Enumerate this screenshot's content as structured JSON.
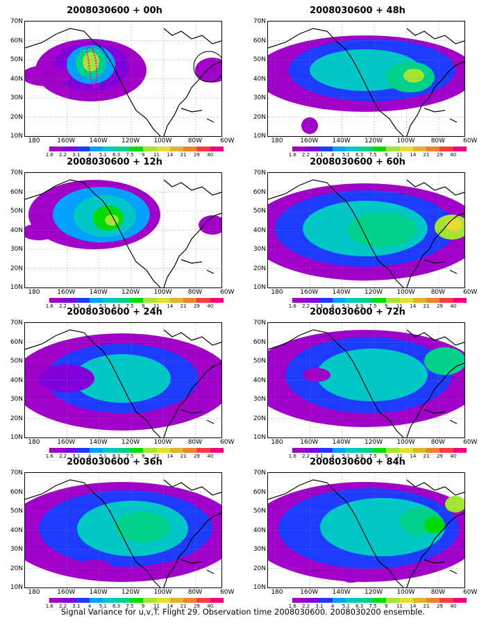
{
  "caption": "Signal Variance for u,v,T. Flight 29. Observation time 2008030600. 2008030200 ensemble.",
  "lat_labels": [
    "70N",
    "60N",
    "50N",
    "40N",
    "30N",
    "20N",
    "10N"
  ],
  "lon_labels": [
    "180",
    "160W",
    "140W",
    "120W",
    "100W",
    "80W",
    "60W"
  ],
  "colorbar": {
    "levels": [
      "1.6",
      "2.2",
      "3.1",
      "4",
      "5.1",
      "6.3",
      "7.5",
      "9",
      "11",
      "14",
      "21",
      "29",
      "40"
    ],
    "colors": [
      "#a000c8",
      "#8200dc",
      "#1e3cff",
      "#00a0ff",
      "#00c8c8",
      "#00d28c",
      "#00dc00",
      "#a0e632",
      "#e6dc32",
      "#e6af2d",
      "#f08228",
      "#fa3c3c",
      "#f00082"
    ]
  },
  "panels": [
    {
      "title": "2008030600 + 00h"
    },
    {
      "title": "2008030600 + 48h"
    },
    {
      "title": "2008030600 + 12h"
    },
    {
      "title": "2008030600 + 60h"
    },
    {
      "title": "2008030600 + 24h"
    },
    {
      "title": "2008030600 + 72h"
    },
    {
      "title": "2008030600 + 36h"
    },
    {
      "title": "2008030600 + 84h"
    }
  ]
}
